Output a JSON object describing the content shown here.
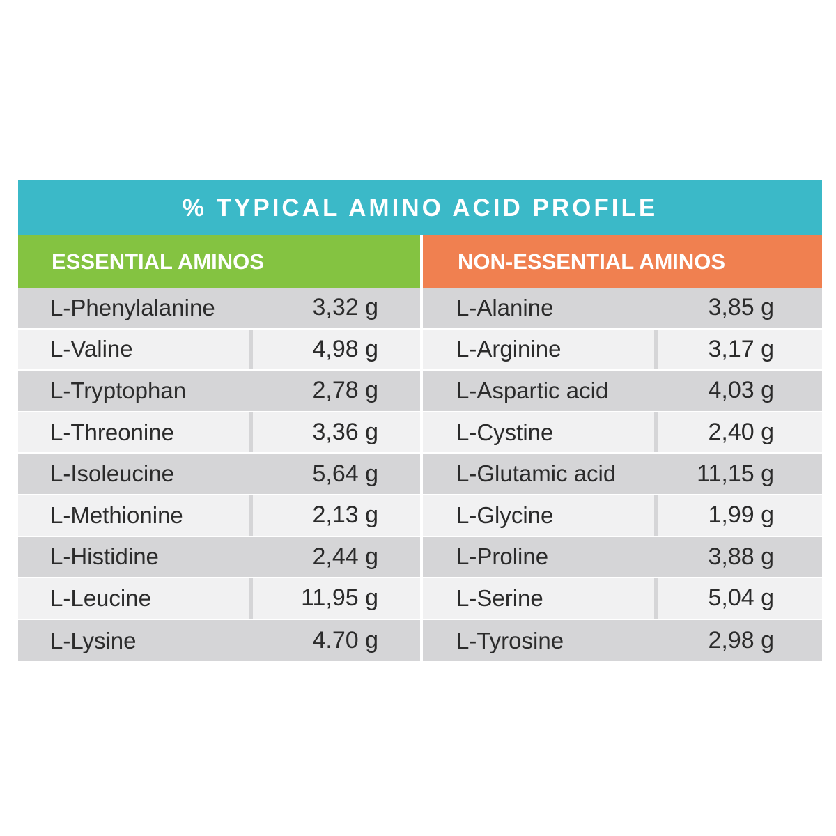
{
  "title": "% TYPICAL AMINO ACID PROFILE",
  "essential": {
    "heading": "ESSENTIAL AMINOS",
    "rows": [
      {
        "name": "L-Phenylalanine",
        "value": "3,32 g"
      },
      {
        "name": "L-Valine",
        "value": "4,98 g"
      },
      {
        "name": "L-Tryptophan",
        "value": "2,78 g"
      },
      {
        "name": "L-Threonine",
        "value": "3,36 g"
      },
      {
        "name": "L-Isoleucine",
        "value": "5,64 g"
      },
      {
        "name": "L-Methionine",
        "value": "2,13 g"
      },
      {
        "name": "L-Histidine",
        "value": "2,44 g"
      },
      {
        "name": "L-Leucine",
        "value": "11,95 g"
      },
      {
        "name": "L-Lysine",
        "value": "4.70 g"
      }
    ]
  },
  "non_essential": {
    "heading": "NON-ESSENTIAL AMINOS",
    "rows": [
      {
        "name": "L-Alanine",
        "value": "3,85 g"
      },
      {
        "name": "L-Arginine",
        "value": "3,17 g"
      },
      {
        "name": "L-Aspartic acid",
        "value": "4,03 g"
      },
      {
        "name": "L-Cystine",
        "value": "2,40 g"
      },
      {
        "name": "L-Glutamic acid",
        "value": "11,15 g"
      },
      {
        "name": "L-Glycine",
        "value": "1,99 g"
      },
      {
        "name": "L-Proline",
        "value": "3,88 g"
      },
      {
        "name": "L-Serine",
        "value": "5,04 g"
      },
      {
        "name": "L-Tyrosine",
        "value": "2,98 g"
      }
    ]
  },
  "colors": {
    "title_bar": "#3bb9c8",
    "essential_header": "#84c341",
    "non_essential_header": "#f08050",
    "row_dark": "#d5d5d7",
    "row_light": "#f1f1f2"
  }
}
